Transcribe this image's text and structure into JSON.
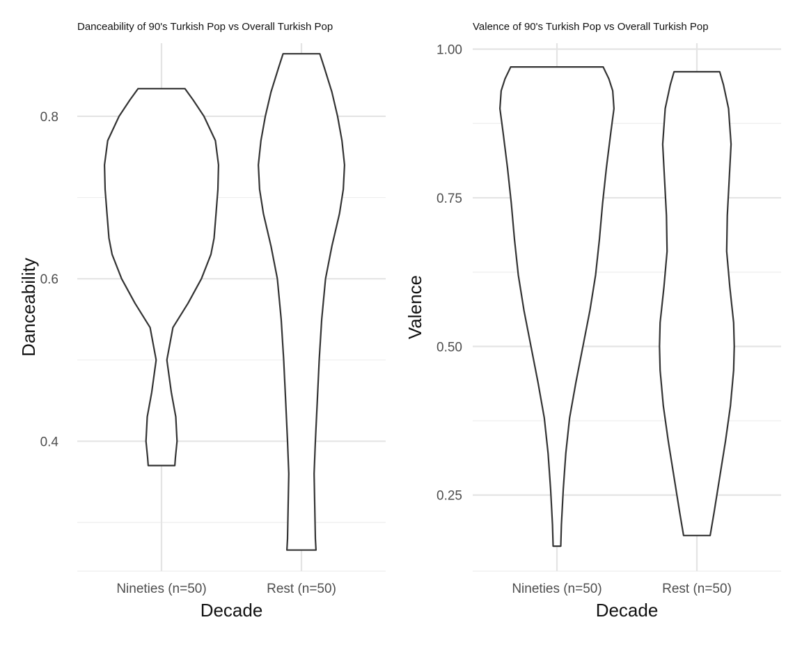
{
  "chart_data": [
    {
      "type": "violin",
      "title": "Danceability of 90's Turkish Pop vs Overall Turkish Pop",
      "xlabel": "Decade",
      "ylabel": "Danceability",
      "categories": [
        "Nineties (n=50)",
        "Rest (n=50)"
      ],
      "yticks": [
        "0.4",
        "0.6",
        "0.8"
      ],
      "ylim": [
        0.24,
        0.89
      ],
      "grid": true,
      "violins": [
        {
          "category": "Nineties (n=50)",
          "min": 0.37,
          "max": 0.834,
          "profile": [
            [
              0.37,
              0.21
            ],
            [
              0.38,
              0.22
            ],
            [
              0.4,
              0.245
            ],
            [
              0.43,
              0.225
            ],
            [
              0.46,
              0.155
            ],
            [
              0.5,
              0.085
            ],
            [
              0.54,
              0.18
            ],
            [
              0.57,
              0.42
            ],
            [
              0.6,
              0.63
            ],
            [
              0.63,
              0.78
            ],
            [
              0.65,
              0.83
            ],
            [
              0.68,
              0.86
            ],
            [
              0.71,
              0.89
            ],
            [
              0.74,
              0.9
            ],
            [
              0.77,
              0.85
            ],
            [
              0.8,
              0.67
            ],
            [
              0.82,
              0.5
            ],
            [
              0.834,
              0.37
            ]
          ]
        },
        {
          "category": "Rest (n=50)",
          "min": 0.266,
          "max": 0.877,
          "profile": [
            [
              0.266,
              0.23
            ],
            [
              0.28,
              0.22
            ],
            [
              0.32,
              0.21
            ],
            [
              0.36,
              0.2
            ],
            [
              0.4,
              0.22
            ],
            [
              0.45,
              0.25
            ],
            [
              0.5,
              0.28
            ],
            [
              0.55,
              0.32
            ],
            [
              0.6,
              0.38
            ],
            [
              0.64,
              0.48
            ],
            [
              0.68,
              0.6
            ],
            [
              0.71,
              0.66
            ],
            [
              0.74,
              0.68
            ],
            [
              0.77,
              0.64
            ],
            [
              0.8,
              0.57
            ],
            [
              0.83,
              0.48
            ],
            [
              0.86,
              0.36
            ],
            [
              0.877,
              0.29
            ]
          ]
        }
      ]
    },
    {
      "type": "violin",
      "title": "Valence of 90's Turkish Pop vs Overall Turkish Pop",
      "xlabel": "Decade",
      "ylabel": "Valence",
      "categories": [
        "Nineties (n=50)",
        "Rest (n=50)"
      ],
      "yticks": [
        "0.25",
        "0.50",
        "0.75",
        "1.00"
      ],
      "ylim": [
        0.122,
        1.01
      ],
      "grid": true,
      "violins": [
        {
          "category": "Nineties (n=50)",
          "min": 0.164,
          "max": 0.97,
          "profile": [
            [
              0.164,
              0.06
            ],
            [
              0.2,
              0.07
            ],
            [
              0.26,
              0.1
            ],
            [
              0.32,
              0.14
            ],
            [
              0.38,
              0.2
            ],
            [
              0.44,
              0.3
            ],
            [
              0.5,
              0.41
            ],
            [
              0.56,
              0.52
            ],
            [
              0.62,
              0.61
            ],
            [
              0.68,
              0.67
            ],
            [
              0.74,
              0.72
            ],
            [
              0.8,
              0.78
            ],
            [
              0.86,
              0.85
            ],
            [
              0.9,
              0.9
            ],
            [
              0.93,
              0.88
            ],
            [
              0.95,
              0.82
            ],
            [
              0.97,
              0.73
            ]
          ]
        },
        {
          "category": "Rest (n=50)",
          "min": 0.182,
          "max": 0.962,
          "profile": [
            [
              0.182,
              0.21
            ],
            [
              0.22,
              0.27
            ],
            [
              0.28,
              0.36
            ],
            [
              0.34,
              0.45
            ],
            [
              0.4,
              0.53
            ],
            [
              0.46,
              0.58
            ],
            [
              0.5,
              0.59
            ],
            [
              0.54,
              0.58
            ],
            [
              0.6,
              0.52
            ],
            [
              0.66,
              0.47
            ],
            [
              0.72,
              0.48
            ],
            [
              0.78,
              0.51
            ],
            [
              0.84,
              0.54
            ],
            [
              0.9,
              0.5
            ],
            [
              0.94,
              0.42
            ],
            [
              0.962,
              0.36
            ]
          ]
        }
      ]
    }
  ]
}
